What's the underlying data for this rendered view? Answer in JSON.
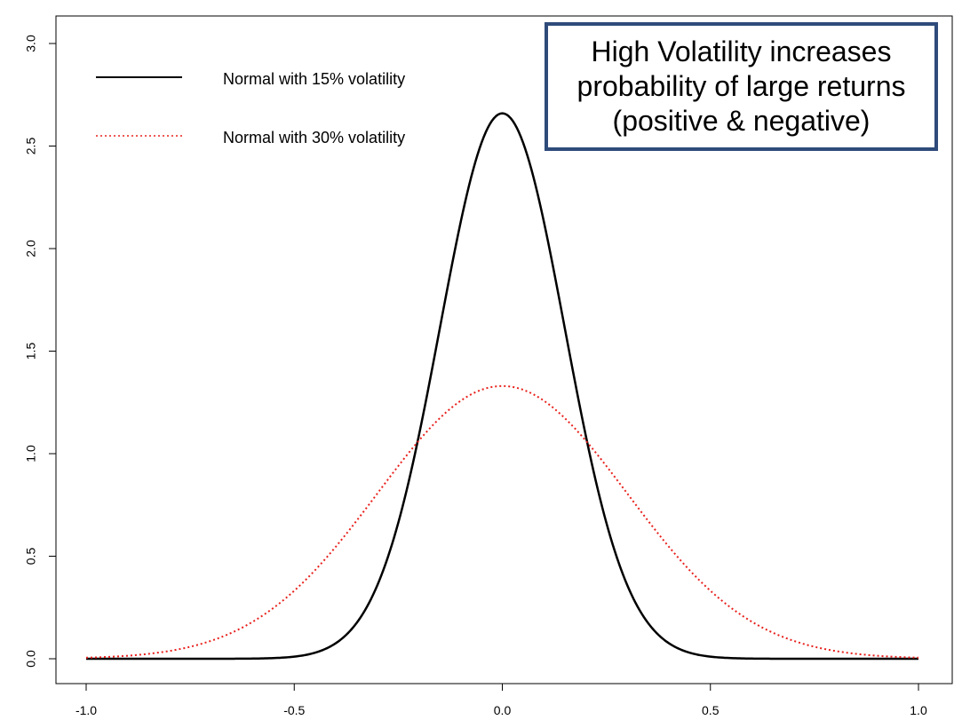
{
  "chart_data": {
    "type": "line",
    "title": "",
    "xlabel": "",
    "ylabel": "",
    "xlim": [
      -1.0,
      1.0
    ],
    "ylim": [
      0.0,
      3.0
    ],
    "x_ticks": [
      "-1.0",
      "-0.5",
      "0.0",
      "0.5",
      "1.0"
    ],
    "x_tick_values": [
      -1.0,
      -0.5,
      0.0,
      0.5,
      1.0
    ],
    "y_ticks": [
      "0.0",
      "0.5",
      "1.0",
      "1.5",
      "2.0",
      "2.5",
      "3.0"
    ],
    "y_tick_values": [
      0.0,
      0.5,
      1.0,
      1.5,
      2.0,
      2.5,
      3.0
    ],
    "series": [
      {
        "name": "Normal with  15% volatility",
        "distribution": "normal",
        "mean": 0.0,
        "sd": 0.15,
        "peak": 2.66,
        "color": "#000000",
        "style": "solid"
      },
      {
        "name": "Normal with  30% volatility",
        "distribution": "normal",
        "mean": 0.0,
        "sd": 0.3,
        "peak": 1.33,
        "color": "#e8201c",
        "style": "dotted"
      }
    ],
    "legend": {
      "placement": "top-left",
      "entries": [
        "Normal with  15% volatility",
        "Normal with  30% volatility"
      ]
    },
    "annotation": {
      "text_lines": [
        "High Volatility increases",
        "probability of large returns",
        "(positive & negative)"
      ],
      "border_color": "#2e4b7a",
      "placement": "top-right"
    }
  }
}
